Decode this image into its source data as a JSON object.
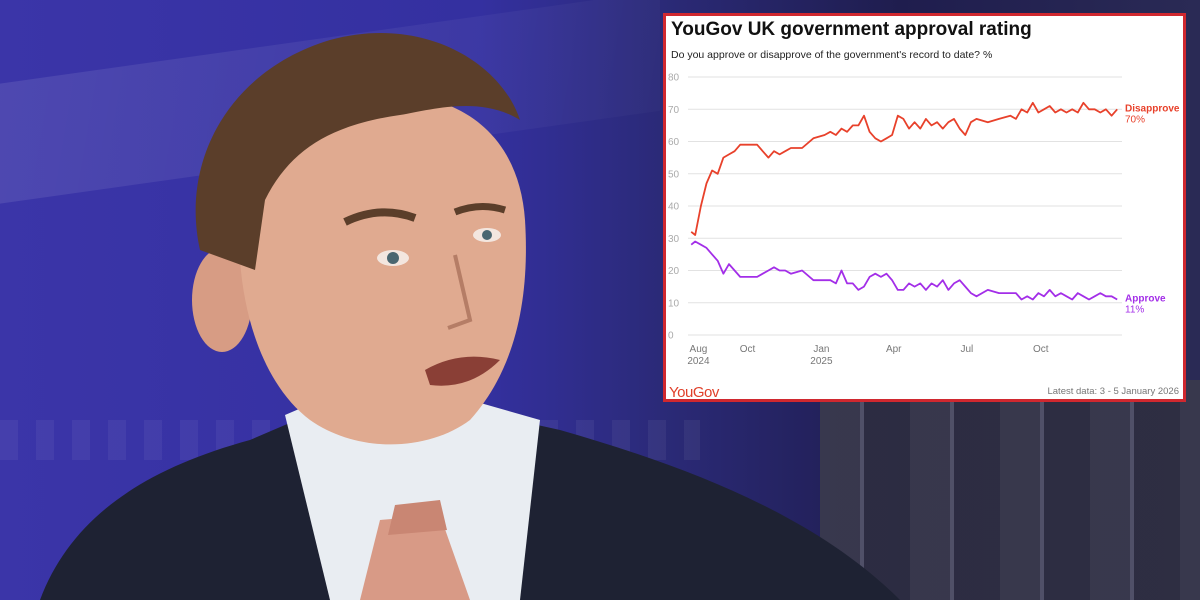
{
  "chart_data": {
    "type": "line",
    "title": "YouGov UK government approval rating",
    "subtitle": "Do you approve or disapprove of the government's record to date? %",
    "ylim": [
      0,
      80
    ],
    "yticks": [
      0,
      10,
      20,
      30,
      40,
      50,
      60,
      70,
      80
    ],
    "grid": true,
    "xticks": [
      {
        "x": "2024-08-01",
        "label": "Aug",
        "sublabel": "2024"
      },
      {
        "x": "2024-10-01",
        "label": "Oct",
        "sublabel": ""
      },
      {
        "x": "2025-01-01",
        "label": "Jan",
        "sublabel": "2025"
      },
      {
        "x": "2025-04-01",
        "label": "Apr",
        "sublabel": ""
      },
      {
        "x": "2025-07-01",
        "label": "Jul",
        "sublabel": ""
      },
      {
        "x": "2025-10-01",
        "label": "Oct",
        "sublabel": ""
      }
    ],
    "xlim": [
      "2024-07-19",
      "2026-01-10"
    ],
    "series": [
      {
        "name": "Disapprove",
        "end_label": "70%",
        "color": "#e8412b",
        "points": [
          [
            "2024-07-23",
            32
          ],
          [
            "2024-07-28",
            31
          ],
          [
            "2024-08-04",
            40
          ],
          [
            "2024-08-11",
            47
          ],
          [
            "2024-08-18",
            51
          ],
          [
            "2024-08-25",
            50
          ],
          [
            "2024-09-01",
            55
          ],
          [
            "2024-09-08",
            56
          ],
          [
            "2024-09-15",
            57
          ],
          [
            "2024-09-22",
            59
          ],
          [
            "2024-10-06",
            59
          ],
          [
            "2024-10-13",
            59
          ],
          [
            "2024-10-20",
            57
          ],
          [
            "2024-10-27",
            55
          ],
          [
            "2024-11-03",
            57
          ],
          [
            "2024-11-10",
            56
          ],
          [
            "2024-11-17",
            57
          ],
          [
            "2024-11-24",
            58
          ],
          [
            "2024-12-08",
            58
          ],
          [
            "2024-12-22",
            61
          ],
          [
            "2025-01-05",
            62
          ],
          [
            "2025-01-12",
            63
          ],
          [
            "2025-01-19",
            62
          ],
          [
            "2025-01-26",
            64
          ],
          [
            "2025-02-02",
            63
          ],
          [
            "2025-02-09",
            65
          ],
          [
            "2025-02-16",
            65
          ],
          [
            "2025-02-23",
            68
          ],
          [
            "2025-03-02",
            63
          ],
          [
            "2025-03-09",
            61
          ],
          [
            "2025-03-16",
            60
          ],
          [
            "2025-03-23",
            61
          ],
          [
            "2025-03-30",
            62
          ],
          [
            "2025-04-06",
            68
          ],
          [
            "2025-04-13",
            67
          ],
          [
            "2025-04-20",
            64
          ],
          [
            "2025-04-27",
            66
          ],
          [
            "2025-05-04",
            64
          ],
          [
            "2025-05-11",
            67
          ],
          [
            "2025-05-18",
            65
          ],
          [
            "2025-05-25",
            66
          ],
          [
            "2025-06-01",
            64
          ],
          [
            "2025-06-08",
            66
          ],
          [
            "2025-06-15",
            67
          ],
          [
            "2025-06-22",
            64
          ],
          [
            "2025-06-29",
            62
          ],
          [
            "2025-07-06",
            66
          ],
          [
            "2025-07-13",
            67
          ],
          [
            "2025-07-27",
            66
          ],
          [
            "2025-08-10",
            67
          ],
          [
            "2025-08-24",
            68
          ],
          [
            "2025-08-31",
            67
          ],
          [
            "2025-09-07",
            70
          ],
          [
            "2025-09-14",
            69
          ],
          [
            "2025-09-21",
            72
          ],
          [
            "2025-09-28",
            69
          ],
          [
            "2025-10-05",
            70
          ],
          [
            "2025-10-12",
            71
          ],
          [
            "2025-10-19",
            69
          ],
          [
            "2025-10-26",
            70
          ],
          [
            "2025-11-02",
            69
          ],
          [
            "2025-11-09",
            70
          ],
          [
            "2025-11-16",
            69
          ],
          [
            "2025-11-23",
            72
          ],
          [
            "2025-11-30",
            70
          ],
          [
            "2025-12-07",
            70
          ],
          [
            "2025-12-14",
            69
          ],
          [
            "2025-12-21",
            70
          ],
          [
            "2025-12-28",
            68
          ],
          [
            "2026-01-04",
            70
          ]
        ]
      },
      {
        "name": "Approve",
        "end_label": "11%",
        "color": "#a32ee8",
        "points": [
          [
            "2024-07-23",
            28
          ],
          [
            "2024-07-28",
            29
          ],
          [
            "2024-08-04",
            28
          ],
          [
            "2024-08-11",
            27
          ],
          [
            "2024-08-18",
            25
          ],
          [
            "2024-08-25",
            23
          ],
          [
            "2024-09-01",
            19
          ],
          [
            "2024-09-08",
            22
          ],
          [
            "2024-09-15",
            20
          ],
          [
            "2024-09-22",
            18
          ],
          [
            "2024-10-06",
            18
          ],
          [
            "2024-10-13",
            18
          ],
          [
            "2024-10-20",
            19
          ],
          [
            "2024-10-27",
            20
          ],
          [
            "2024-11-03",
            21
          ],
          [
            "2024-11-10",
            20
          ],
          [
            "2024-11-17",
            20
          ],
          [
            "2024-11-24",
            19
          ],
          [
            "2024-12-08",
            20
          ],
          [
            "2024-12-22",
            17
          ],
          [
            "2025-01-05",
            17
          ],
          [
            "2025-01-12",
            17
          ],
          [
            "2025-01-19",
            16
          ],
          [
            "2025-01-26",
            20
          ],
          [
            "2025-02-02",
            16
          ],
          [
            "2025-02-09",
            16
          ],
          [
            "2025-02-16",
            14
          ],
          [
            "2025-02-23",
            15
          ],
          [
            "2025-03-02",
            18
          ],
          [
            "2025-03-09",
            19
          ],
          [
            "2025-03-16",
            18
          ],
          [
            "2025-03-23",
            19
          ],
          [
            "2025-03-30",
            17
          ],
          [
            "2025-04-06",
            14
          ],
          [
            "2025-04-13",
            14
          ],
          [
            "2025-04-20",
            16
          ],
          [
            "2025-04-27",
            15
          ],
          [
            "2025-05-04",
            16
          ],
          [
            "2025-05-11",
            14
          ],
          [
            "2025-05-18",
            16
          ],
          [
            "2025-05-25",
            15
          ],
          [
            "2025-06-01",
            17
          ],
          [
            "2025-06-08",
            14
          ],
          [
            "2025-06-15",
            16
          ],
          [
            "2025-06-22",
            17
          ],
          [
            "2025-06-29",
            15
          ],
          [
            "2025-07-06",
            13
          ],
          [
            "2025-07-13",
            12
          ],
          [
            "2025-07-27",
            14
          ],
          [
            "2025-08-10",
            13
          ],
          [
            "2025-08-24",
            13
          ],
          [
            "2025-08-31",
            13
          ],
          [
            "2025-09-07",
            11
          ],
          [
            "2025-09-14",
            12
          ],
          [
            "2025-09-21",
            11
          ],
          [
            "2025-09-28",
            13
          ],
          [
            "2025-10-05",
            12
          ],
          [
            "2025-10-12",
            14
          ],
          [
            "2025-10-19",
            12
          ],
          [
            "2025-10-26",
            13
          ],
          [
            "2025-11-02",
            12
          ],
          [
            "2025-11-09",
            11
          ],
          [
            "2025-11-16",
            13
          ],
          [
            "2025-11-23",
            12
          ],
          [
            "2025-11-30",
            11
          ],
          [
            "2025-12-07",
            12
          ],
          [
            "2025-12-14",
            13
          ],
          [
            "2025-12-21",
            12
          ],
          [
            "2025-12-28",
            12
          ],
          [
            "2026-01-04",
            11
          ]
        ]
      }
    ]
  },
  "branding": {
    "logo_text": "YouGov",
    "logo_color": "#e0402a"
  },
  "footer": {
    "latest_data": "Latest data: 3 - 5 January 2026"
  },
  "frame_color": "#d0282f"
}
